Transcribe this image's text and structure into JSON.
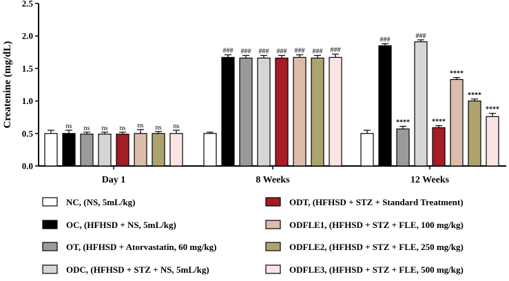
{
  "chart_data": {
    "type": "bar",
    "title": "",
    "xlabel": "",
    "ylabel": "Createnine (mg/dL)",
    "ylim": [
      0,
      2.5
    ],
    "yticks": [
      "0.0",
      "0.5",
      "1.0",
      "1.5",
      "2.0",
      "2.5"
    ],
    "ytick_values": [
      0,
      0.5,
      1.0,
      1.5,
      2.0,
      2.5
    ],
    "categories": [
      "Day 1",
      "8 Weeks",
      "12 Weeks"
    ],
    "series": [
      {
        "name": "NC,  (NS, 5mL/kg)",
        "color": "#ffffff",
        "values": [
          0.5,
          0.5,
          0.5
        ],
        "errors": [
          0.05,
          0.02,
          0.05
        ],
        "labels": [
          "",
          "",
          ""
        ]
      },
      {
        "name": "OC, (HFHSD + NS, 5mL/kg)",
        "color": "#000000",
        "values": [
          0.5,
          1.67,
          1.85
        ],
        "errors": [
          0.05,
          0.04,
          0.03
        ],
        "labels": [
          "ns",
          "###",
          "###"
        ]
      },
      {
        "name": "OT, (HFHSD + Atorvastatin, 60 mg/kg)",
        "color": "#9a9a9a",
        "values": [
          0.49,
          1.66,
          0.57
        ],
        "errors": [
          0.03,
          0.04,
          0.04
        ],
        "labels": [
          "ns",
          "###",
          "****"
        ]
      },
      {
        "name": "ODC, (HFHSD + STZ + NS, 5mL/kg)",
        "color": "#d6d6d6",
        "values": [
          0.49,
          1.66,
          1.91
        ],
        "errors": [
          0.03,
          0.04,
          0.03
        ],
        "labels": [
          "ns",
          "###",
          "###"
        ]
      },
      {
        "name": "ODT, (HFHSD + STZ + Standard Treatment)",
        "color": "#a51c24",
        "values": [
          0.49,
          1.66,
          0.59
        ],
        "errors": [
          0.03,
          0.04,
          0.03
        ],
        "labels": [
          "ns",
          "###",
          "****"
        ]
      },
      {
        "name": "ODFLE1, (HFHSD + STZ + FLE, 100 mg/kg)",
        "color": "#dcbcaa",
        "values": [
          0.5,
          1.67,
          1.33
        ],
        "errors": [
          0.06,
          0.04,
          0.03
        ],
        "labels": [
          "ns",
          "###",
          "****"
        ]
      },
      {
        "name": "ODFLE2, (HFHSD + STZ + FLE, 250 mg/kg)",
        "color": "#aca46c",
        "values": [
          0.5,
          1.66,
          1.0
        ],
        "errors": [
          0.03,
          0.04,
          0.03
        ],
        "labels": [
          "ns",
          "###",
          "****"
        ]
      },
      {
        "name": "ODFLE3, (HFHSD + STZ + FLE, 500 mg/kg)",
        "color": "#fde4e4",
        "values": [
          0.5,
          1.67,
          0.76
        ],
        "errors": [
          0.05,
          0.05,
          0.05
        ],
        "labels": [
          "ns",
          "###",
          "****"
        ]
      }
    ]
  }
}
